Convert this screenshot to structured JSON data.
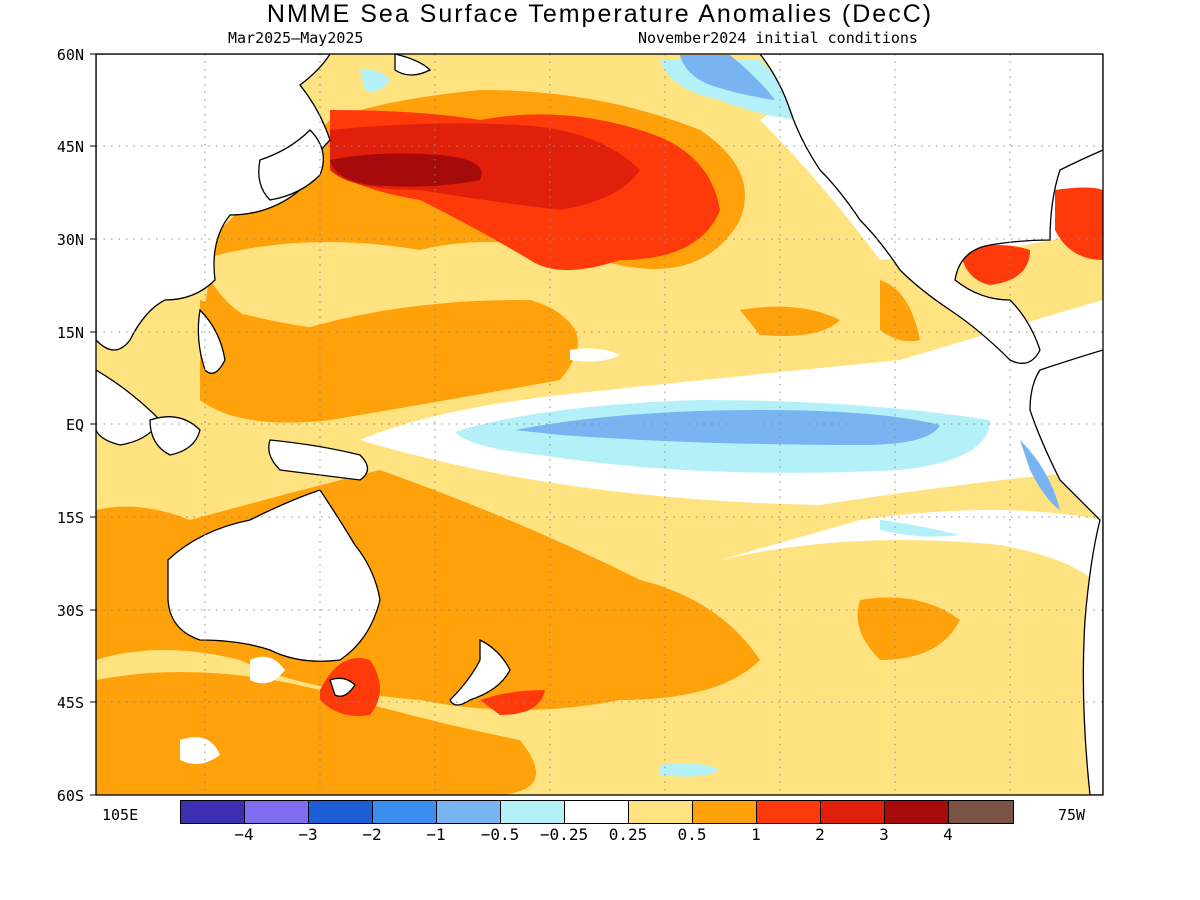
{
  "title": "NMME Sea Surface Temperature Anomalies (DecC)",
  "subtitle_left": "Mar2025–May2025",
  "subtitle_right": "November2024 initial conditions",
  "lat_labels": [
    "60N",
    "45N",
    "30N",
    "15N",
    "EQ",
    "15S",
    "30S",
    "45S",
    "60S"
  ],
  "lon_labels": {
    "west": "105E",
    "east": "75W"
  },
  "colorbar": {
    "ticks": [
      "−4",
      "−3",
      "−2",
      "−1",
      "−0.5",
      "−0.25",
      "0.25",
      "0.5",
      "1",
      "2",
      "3",
      "4"
    ],
    "colors": [
      "#3c2fb4",
      "#7f6ef0",
      "#1c5fd4",
      "#3b8ef0",
      "#78b3f2",
      "#b4f0f8",
      "#ffffff",
      "#ffe380",
      "#ffa10a",
      "#ff3a0a",
      "#e0200a",
      "#a60a0a",
      "#7a5246"
    ]
  },
  "colors": {
    "land": "#ffffff",
    "coast": "#000000",
    "grid": "#8a8a8a"
  }
}
